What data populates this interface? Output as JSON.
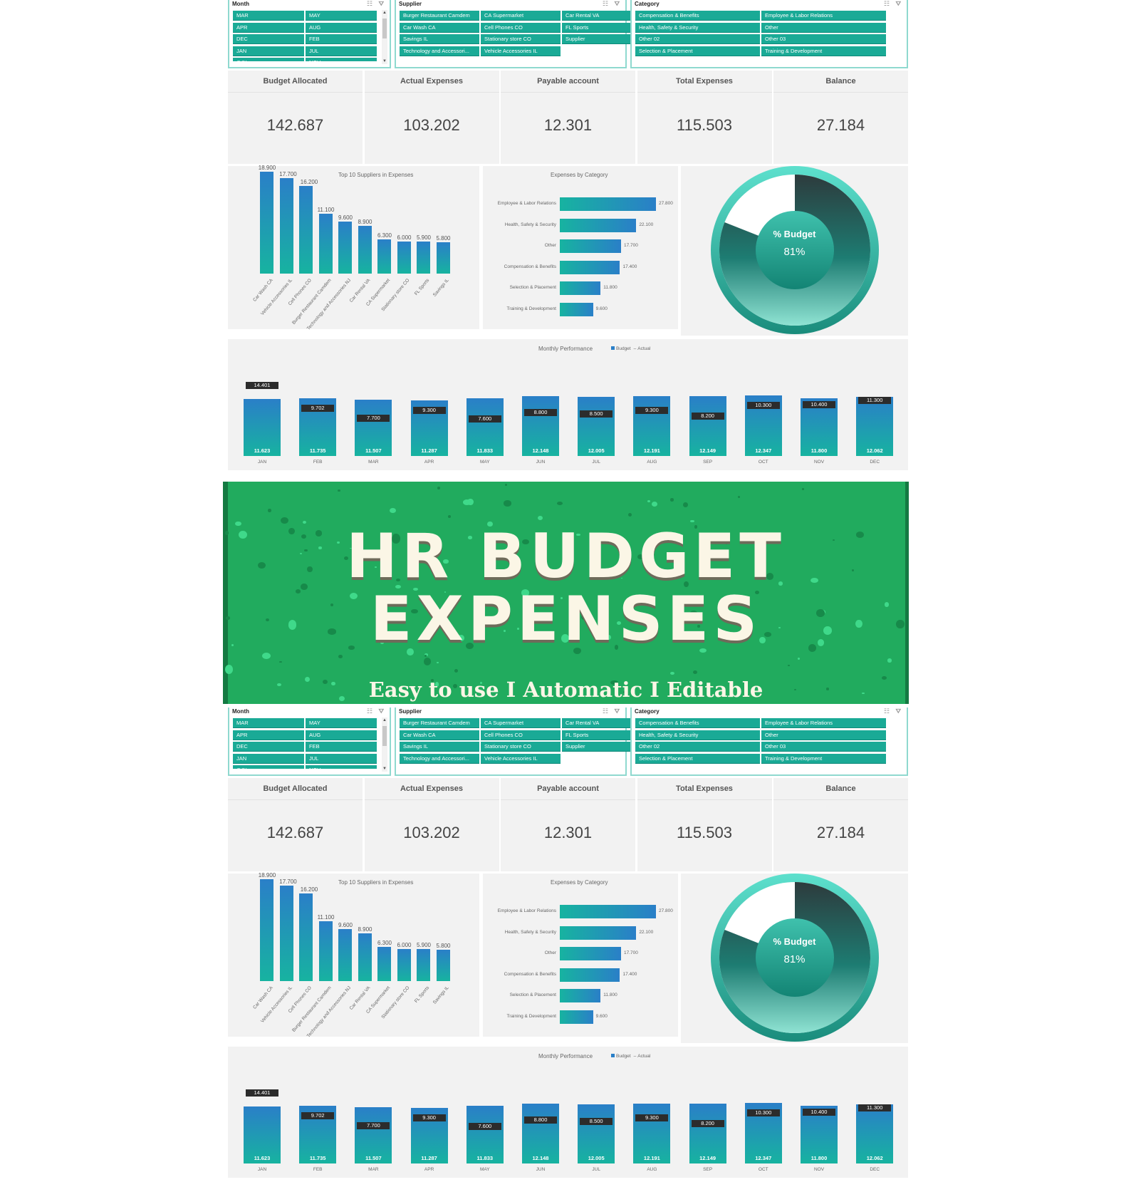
{
  "slicers": {
    "month": {
      "title": "Month",
      "items": [
        "MAR",
        "MAY",
        "APR",
        "AUG",
        "DEC",
        "FEB",
        "JAN",
        "JUL",
        "JUN",
        "NOV"
      ]
    },
    "supplier": {
      "title": "Supplier",
      "items": [
        "Burger Restaurant Camdem",
        "CA Supermarket",
        "Car Rental VA",
        "Car Wash CA",
        "Cell Phones CO",
        "FL Sports",
        "Savings IL",
        "Stationary store CO",
        "Supplier",
        "Technology and Accessori...",
        "Vehicle Accessories IL"
      ]
    },
    "category": {
      "title": "Category",
      "items": [
        "Compensation & Benefits",
        "Employee & Labor Relations",
        "Health, Safety & Security",
        "Other",
        "Other 02",
        "Other 03",
        "Selection & Placement",
        "Training & Development"
      ]
    }
  },
  "kpis": [
    {
      "label": "Budget Allocated",
      "value": "142.687"
    },
    {
      "label": "Actual Expenses",
      "value": "103.202"
    },
    {
      "label": "Payable account",
      "value": "12.301"
    },
    {
      "label": "Total Expenses",
      "value": "115.503"
    },
    {
      "label": "Balance",
      "value": "27.184"
    }
  ],
  "donut": {
    "label": "% Budget",
    "value": "81%",
    "percent": 81
  },
  "banner": {
    "title_line1": "HR BUDGET",
    "title_line2": "EXPENSES",
    "subtitle": "Easy to use I Automatic I Editable"
  },
  "chart_data": [
    {
      "type": "bar",
      "title": "Top 10 Suppliers in Expenses",
      "categories": [
        "Car Wash CA",
        "Vehicle Accessories IL",
        "Cell Phones CO",
        "Burger Restaurant Camdem",
        "Technology and Accessories NJ",
        "Car Rental VA",
        "CA Supermarket",
        "Stationary store CO",
        "FL Sports",
        "Savings IL"
      ],
      "values": [
        18900,
        17700,
        16200,
        11100,
        9600,
        8900,
        6300,
        6000,
        5900,
        5800
      ],
      "labels": [
        "18.900",
        "17.700",
        "16.200",
        "11.100",
        "9.600",
        "8.900",
        "6.300",
        "6.000",
        "5.900",
        "5.800"
      ]
    },
    {
      "type": "bar",
      "orientation": "horizontal",
      "title": "Expenses by Category",
      "categories": [
        "Employee & Labor Relations",
        "Health, Safety & Security",
        "Other",
        "Compensation & Benefits",
        "Selection & Placement",
        "Training & Development"
      ],
      "values": [
        27800,
        22100,
        17700,
        17400,
        11800,
        9600
      ],
      "labels": [
        "27.800",
        "22.100",
        "17.700",
        "17.400",
        "11.800",
        "9.600"
      ]
    },
    {
      "type": "bar",
      "title": "Monthly Performance",
      "legend": [
        "Budget",
        "Actual"
      ],
      "categories": [
        "JAN",
        "FEB",
        "MAR",
        "APR",
        "MAY",
        "JUN",
        "JUL",
        "AUG",
        "SEP",
        "OCT",
        "NOV",
        "DEC"
      ],
      "series": [
        {
          "name": "Budget",
          "values": [
            11623,
            11735,
            11507,
            11287,
            11833,
            12148,
            12005,
            12191,
            12149,
            12347,
            11800,
            12062
          ],
          "labels": [
            "11.623",
            "11.735",
            "11.507",
            "11.287",
            "11.833",
            "12.148",
            "12.005",
            "12.191",
            "12.149",
            "12.347",
            "11.800",
            "12.062"
          ]
        },
        {
          "name": "Actual",
          "values": [
            14401,
            9702,
            7700,
            9300,
            7600,
            8800,
            8500,
            9300,
            8200,
            10300,
            10400,
            11300
          ],
          "labels": [
            "14.401",
            "9.702",
            "7.700",
            "9.300",
            "7.600",
            "8.800",
            "8.500",
            "9.300",
            "8.200",
            "10.300",
            "10.400",
            "11.300"
          ]
        }
      ]
    }
  ]
}
